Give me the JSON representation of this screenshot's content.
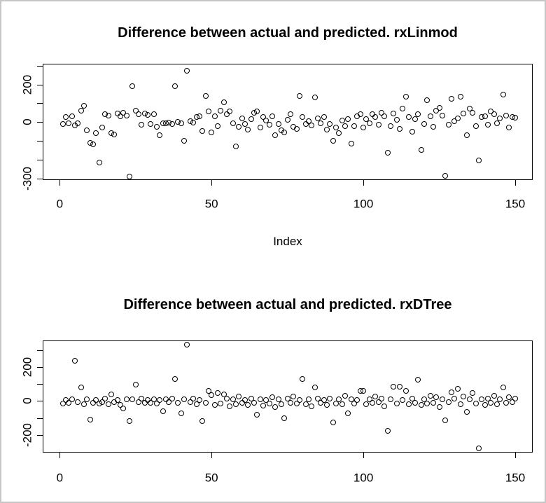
{
  "figure": {
    "background": "#ffffff",
    "border_color": "#c6c6c6",
    "line_color": "#000000",
    "marker": "open-circle"
  },
  "chart_data": [
    {
      "type": "scatter",
      "title": "Difference between actual and predicted. rxLinmod",
      "xlabel": "Index",
      "ylabel": "",
      "grid": false,
      "legend": "none",
      "x_ticks": [
        0,
        50,
        100,
        150
      ],
      "y_ticks": [
        300,
        200,
        100,
        0,
        -100,
        -200,
        -300
      ],
      "y_tick_labels": [
        200,
        0,
        -300
      ],
      "xlim": [
        -5.5,
        156
      ],
      "ylim": [
        -309,
        310
      ],
      "x_description": "Index 1..150, one point per index",
      "y": [
        -10,
        25,
        -5,
        32,
        -18,
        -8,
        60,
        85,
        -45,
        -110,
        -120,
        -60,
        -215,
        -30,
        40,
        35,
        -60,
        -65,
        45,
        30,
        48,
        35,
        -290,
        192,
        60,
        40,
        -15,
        45,
        38,
        -12,
        42,
        -25,
        -70,
        -5,
        -8,
        -2,
        -10,
        190,
        0,
        -5,
        -100,
        272,
        5,
        -3,
        25,
        32,
        -48,
        140,
        55,
        -55,
        30,
        -20,
        62,
        105,
        42,
        58,
        -8,
        -130,
        -25,
        20,
        -12,
        -40,
        15,
        48,
        55,
        -30,
        25,
        8,
        -15,
        30,
        -70,
        -10,
        -45,
        -55,
        12,
        40,
        -25,
        -35,
        140,
        25,
        -10,
        5,
        -18,
        130,
        20,
        -5,
        28,
        -40,
        -12,
        -100,
        -30,
        -60,
        8,
        -22,
        15,
        -115,
        -20,
        30,
        40,
        -28,
        15,
        -8,
        42,
        25,
        -15,
        50,
        30,
        -165,
        -20,
        45,
        12,
        -35,
        70,
        135,
        28,
        -50,
        15,
        40,
        -150,
        -10,
        115,
        30,
        -25,
        60,
        75,
        35,
        -285,
        -15,
        125,
        5,
        20,
        135,
        45,
        -70,
        72,
        48,
        -20,
        -205,
        25,
        32,
        -15,
        55,
        40,
        -8,
        20,
        145,
        35,
        -30,
        28,
        22
      ]
    },
    {
      "type": "scatter",
      "title": "Difference between actual and predicted. rxDTree",
      "xlabel": "",
      "ylabel": "",
      "grid": false,
      "legend": "none",
      "x_ticks": [
        0,
        50,
        100,
        150
      ],
      "y_ticks": [
        300,
        200,
        100,
        0,
        -100,
        -200
      ],
      "y_tick_labels": [
        200,
        0,
        -200
      ],
      "xlim": [
        -5.5,
        156
      ],
      "ylim": [
        -304,
        357
      ],
      "x_description": "Index 1..150, one point per index",
      "y": [
        -15,
        5,
        -10,
        8,
        235,
        -5,
        80,
        -20,
        10,
        -110,
        -10,
        5,
        -15,
        -5,
        12,
        -18,
        40,
        -8,
        5,
        -25,
        -45,
        10,
        -120,
        8,
        95,
        -5,
        12,
        -10,
        5,
        -10,
        8,
        -15,
        5,
        -60,
        10,
        -8,
        15,
        130,
        -12,
        -75,
        10,
        330,
        -8,
        15,
        -20,
        5,
        -120,
        -10,
        60,
        35,
        -25,
        45,
        -15,
        40,
        12,
        -30,
        8,
        -18,
        25,
        -10,
        5,
        -22,
        15,
        -12,
        -80,
        10,
        -28,
        5,
        -15,
        20,
        -35,
        8,
        -20,
        -100,
        15,
        -10,
        25,
        -15,
        5,
        130,
        -20,
        10,
        -30,
        80,
        15,
        -10,
        5,
        -25,
        12,
        -125,
        -15,
        8,
        -20,
        30,
        -75,
        10,
        -15,
        5,
        60,
        60,
        -20,
        10,
        -12,
        25,
        -8,
        15,
        -30,
        -175,
        10,
        85,
        -15,
        85,
        5,
        60,
        -20,
        12,
        -10,
        125,
        -25,
        8,
        -15,
        30,
        -10,
        20,
        -35,
        10,
        -115,
        -8,
        50,
        15,
        70,
        -20,
        25,
        -65,
        10,
        45,
        -15,
        -280,
        8,
        -25,
        15,
        -10,
        30,
        -18,
        10,
        80,
        -12,
        20,
        -8,
        15
      ]
    }
  ]
}
